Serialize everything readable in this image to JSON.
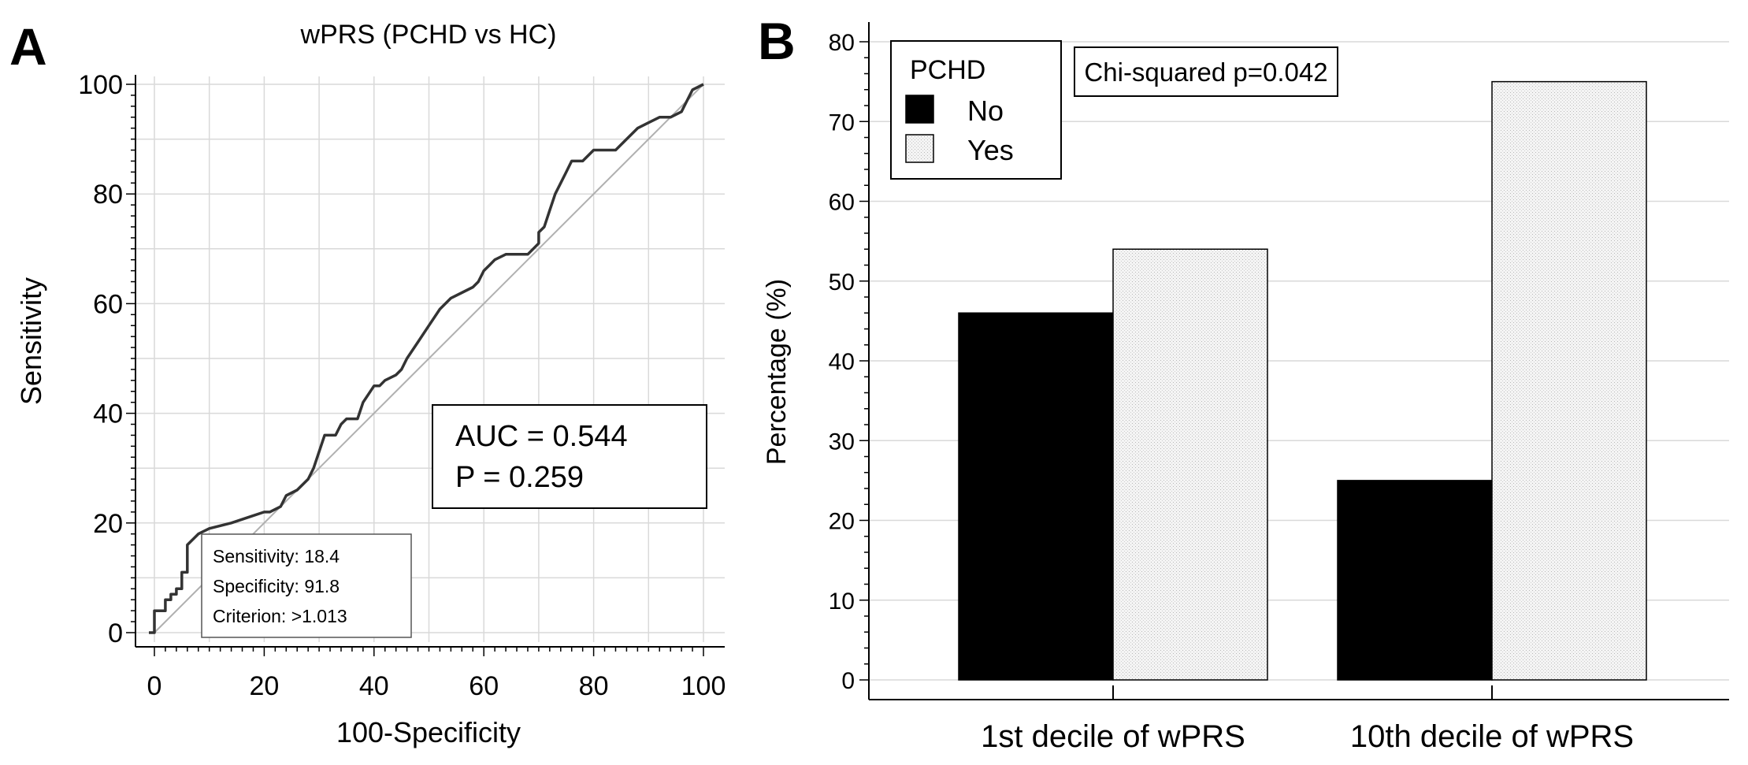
{
  "panels": {
    "a": {
      "letter": "A"
    },
    "b": {
      "letter": "B"
    }
  },
  "colors": {
    "axis": "#000000",
    "grid": "#d9d9d9",
    "roc_line": "#333333",
    "diagonal": "#b0b0b0",
    "bar_no": "#000000",
    "bar_yes": "#efefef"
  },
  "chart_data": [
    {
      "type": "line",
      "title": "wPRS (PCHD vs HC)",
      "xlabel": "100-Specificity",
      "ylabel": "Sensitivity",
      "xlim": [
        0,
        100
      ],
      "ylim": [
        0,
        100
      ],
      "xticks": [
        0,
        20,
        40,
        60,
        80,
        100
      ],
      "yticks": [
        0,
        20,
        40,
        60,
        80,
        100
      ],
      "grid": true,
      "series": [
        {
          "name": "ROC curve",
          "x": [
            -1,
            0,
            0,
            2,
            2,
            3,
            3,
            4,
            4,
            5,
            5,
            6,
            6,
            8,
            10,
            14,
            17,
            20,
            21,
            23,
            24,
            26,
            28,
            29,
            30,
            31,
            33,
            34,
            35,
            37,
            38,
            40,
            41,
            42,
            44,
            45,
            46,
            48,
            50,
            52,
            54,
            56,
            58,
            59,
            60,
            61,
            62,
            64,
            66,
            68,
            70,
            70,
            71,
            72,
            73,
            74,
            75,
            76,
            78,
            80,
            82,
            84,
            86,
            88,
            90,
            92,
            94,
            96,
            97,
            98,
            100
          ],
          "y": [
            0,
            0,
            4,
            4,
            6,
            6,
            7,
            7,
            8,
            8,
            11,
            11,
            16,
            18,
            19,
            20,
            21,
            22,
            22,
            23,
            25,
            26,
            28,
            30,
            33,
            36,
            36,
            38,
            39,
            39,
            42,
            45,
            45,
            46,
            47,
            48,
            50,
            53,
            56,
            59,
            61,
            62,
            63,
            64,
            66,
            67,
            68,
            69,
            69,
            69,
            71,
            73,
            74,
            77,
            80,
            82,
            84,
            86,
            86,
            88,
            88,
            88,
            90,
            92,
            93,
            94,
            94,
            95,
            97,
            99,
            100
          ]
        },
        {
          "name": "Reference line",
          "x": [
            0,
            100
          ],
          "y": [
            0,
            100
          ]
        }
      ],
      "annotations": {
        "auc_line": "AUC = 0.544",
        "p_line": "P = 0.259",
        "sensitivity": "Sensitivity: 18.4",
        "specificity": "Specificity: 91.8",
        "criterion": "Criterion: >1.013"
      }
    },
    {
      "type": "bar",
      "title": "",
      "xlabel": "",
      "ylabel": "Percentage (%)",
      "ylim": [
        0,
        80
      ],
      "yticks": [
        0,
        10,
        20,
        30,
        40,
        50,
        60,
        70,
        80
      ],
      "grid": true,
      "categories": [
        "1st decile of wPRS",
        "10th decile of wPRS"
      ],
      "series": [
        {
          "name": "No",
          "values": [
            46,
            25
          ]
        },
        {
          "name": "Yes",
          "values": [
            54,
            75
          ]
        }
      ],
      "legend": {
        "title": "PCHD",
        "position": "top-left"
      },
      "annotation": "Chi-squared p=0.042"
    }
  ]
}
